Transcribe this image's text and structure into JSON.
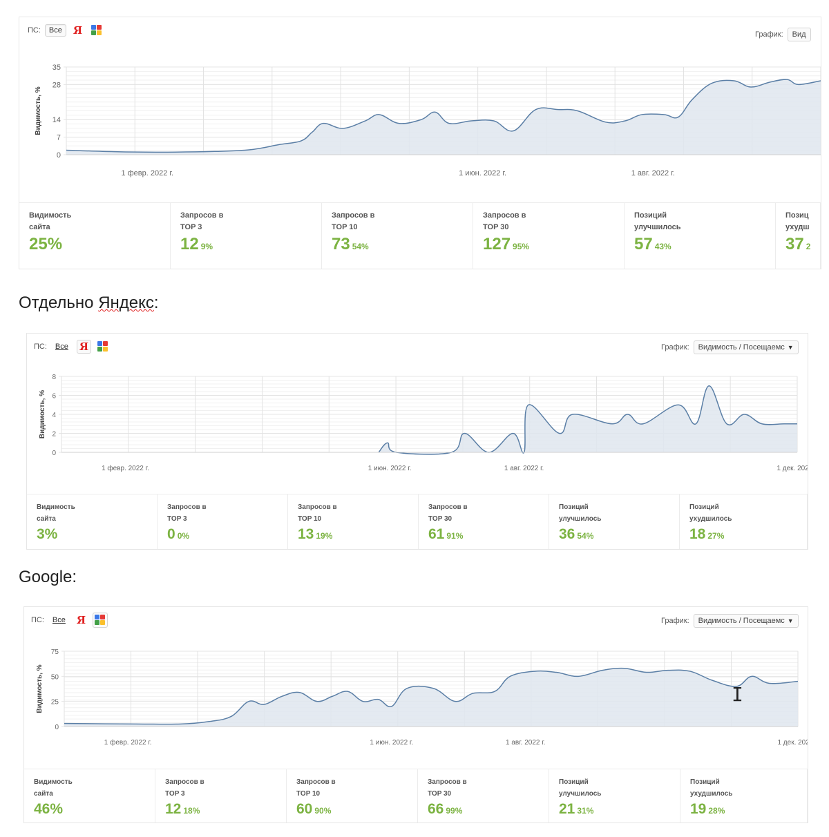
{
  "panels": [
    {
      "ps_label": "ПС:",
      "ps_all": "Все",
      "grafik_label": "График:",
      "grafik_value": "Вид",
      "ylabel": "Видимость, %",
      "stats": [
        {
          "label": "Видимость\nсайта",
          "value": "25%",
          "pct": ""
        },
        {
          "label": "Запросов в\nTOP 3",
          "value": "12",
          "pct": "9%"
        },
        {
          "label": "Запросов в\nTOP 10",
          "value": "73",
          "pct": "54%"
        },
        {
          "label": "Запросов в\nTOP 30",
          "value": "127",
          "pct": "95%"
        },
        {
          "label": "Позиций\nулучшилось",
          "value": "57",
          "pct": "43%"
        },
        {
          "label": "Позиц\nухудш",
          "value": "37",
          "pct": "2"
        }
      ]
    },
    {
      "ps_label": "ПС:",
      "ps_all": "Все",
      "grafik_label": "График:",
      "grafik_value": "Видимость / Посещаемс",
      "ylabel": "Видимость, %",
      "stats": [
        {
          "label": "Видимость\nсайта",
          "value": "3%",
          "pct": ""
        },
        {
          "label": "Запросов в\nTOP 3",
          "value": "0",
          "pct": "0%"
        },
        {
          "label": "Запросов в\nTOP 10",
          "value": "13",
          "pct": "19%"
        },
        {
          "label": "Запросов в\nTOP 30",
          "value": "61",
          "pct": "91%"
        },
        {
          "label": "Позиций\nулучшилось",
          "value": "36",
          "pct": "54%"
        },
        {
          "label": "Позиций\nухудшилось",
          "value": "18",
          "pct": "27%"
        }
      ]
    },
    {
      "ps_label": "ПС:",
      "ps_all": "Все",
      "grafik_label": "График:",
      "grafik_value": "Видимость / Посещаемс",
      "ylabel": "Видимость, %",
      "stats": [
        {
          "label": "Видимость\nсайта",
          "value": "46%",
          "pct": ""
        },
        {
          "label": "Запросов в\nTOP 3",
          "value": "12",
          "pct": "18%"
        },
        {
          "label": "Запросов в\nTOP 10",
          "value": "60",
          "pct": "90%"
        },
        {
          "label": "Запросов в\nTOP 30",
          "value": "66",
          "pct": "99%"
        },
        {
          "label": "Позиций\nулучшилось",
          "value": "21",
          "pct": "31%"
        },
        {
          "label": "Позиций\nухудшилось",
          "value": "19",
          "pct": "28%"
        }
      ]
    }
  ],
  "headings": {
    "yandex_prefix": "Отдельно ",
    "yandex_word": "Яндекс",
    "yandex_suffix": ":",
    "google": "Google:"
  },
  "colors": {
    "line": "#5b7fa6",
    "fill": "#dfe6ee",
    "grid": "#e4e4e4",
    "accent_green": "#7cb342",
    "yandex_red": "#e02020"
  },
  "chart_data": [
    {
      "type": "area",
      "ylabel": "Видимость, %",
      "yticks": [
        0,
        7,
        14,
        28,
        35
      ],
      "ylim": [
        0,
        35
      ],
      "x_axis": "date",
      "xlim": [
        "2022-01-03",
        "2022-09-30"
      ],
      "xticks": [
        {
          "date": "2022-02-01",
          "label": "1 февр. 2022 г."
        },
        {
          "date": "2022-06-01",
          "label": "1 июн. 2022 г."
        },
        {
          "date": "2022-08-01",
          "label": "1 авг. 2022 г."
        }
      ],
      "x": [
        "2022-01-03",
        "2022-01-20",
        "2022-02-05",
        "2022-02-25",
        "2022-03-10",
        "2022-03-20",
        "2022-03-28",
        "2022-04-01",
        "2022-04-05",
        "2022-04-12",
        "2022-04-20",
        "2022-04-25",
        "2022-05-02",
        "2022-05-10",
        "2022-05-15",
        "2022-05-20",
        "2022-05-28",
        "2022-06-05",
        "2022-06-12",
        "2022-06-20",
        "2022-06-28",
        "2022-07-05",
        "2022-07-15",
        "2022-07-22",
        "2022-07-28",
        "2022-08-05",
        "2022-08-10",
        "2022-08-15",
        "2022-08-22",
        "2022-08-30",
        "2022-09-05",
        "2022-09-12",
        "2022-09-18",
        "2022-09-22",
        "2022-09-30"
      ],
      "series": [
        {
          "values": [
            1.8,
            1.2,
            1.0,
            1.3,
            2.0,
            4.0,
            5.5,
            9.0,
            12.5,
            10.5,
            13.5,
            16.0,
            12.5,
            14.0,
            17.0,
            12.5,
            13.5,
            13.5,
            9.5,
            18.0,
            18.0,
            17.5,
            13.0,
            13.5,
            16.0,
            16.0,
            15.0,
            22.0,
            28.5,
            29.5,
            27.0,
            29.0,
            30.0,
            28.0,
            29.5
          ]
        }
      ]
    },
    {
      "type": "area",
      "ylabel": "Видимость, %",
      "yticks": [
        0,
        2,
        4,
        6,
        8
      ],
      "ylim": [
        0,
        8
      ],
      "x_axis": "date",
      "xlim": [
        "2022-01-03",
        "2022-12-03"
      ],
      "xticks": [
        {
          "date": "2022-02-01",
          "label": "1 февр. 2022 г."
        },
        {
          "date": "2022-06-01",
          "label": "1 июн. 2022 г."
        },
        {
          "date": "2022-08-01",
          "label": "1 авг. 2022 г."
        },
        {
          "date": "2022-12-01",
          "label": "1 дек. 202"
        }
      ],
      "x": [
        "2022-05-27",
        "2022-05-31",
        "2022-06-04",
        "2022-06-29",
        "2022-07-05",
        "2022-07-16",
        "2022-07-27",
        "2022-08-01",
        "2022-08-03",
        "2022-08-17",
        "2022-08-23",
        "2022-09-10",
        "2022-09-17",
        "2022-09-24",
        "2022-10-10",
        "2022-10-18",
        "2022-10-24",
        "2022-11-01",
        "2022-11-09",
        "2022-11-17",
        "2022-11-27",
        "2022-12-03"
      ],
      "series": [
        {
          "values": [
            0,
            1,
            0,
            0,
            2,
            0,
            2,
            0,
            5,
            2,
            4,
            3,
            4,
            3,
            5,
            3,
            7,
            3,
            4,
            3,
            3,
            3
          ]
        }
      ]
    },
    {
      "type": "area",
      "ylabel": "Видимость, %",
      "yticks": [
        0,
        25,
        50,
        75
      ],
      "ylim": [
        0,
        75
      ],
      "x_axis": "date",
      "xlim": [
        "2022-01-03",
        "2022-12-03"
      ],
      "xticks": [
        {
          "date": "2022-02-01",
          "label": "1 февр. 2022 г."
        },
        {
          "date": "2022-06-01",
          "label": "1 июн. 2022 г."
        },
        {
          "date": "2022-08-01",
          "label": "1 авг. 2022 г."
        },
        {
          "date": "2022-12-01",
          "label": "1 дек. 202"
        }
      ],
      "x": [
        "2022-01-03",
        "2022-02-05",
        "2022-02-25",
        "2022-03-10",
        "2022-03-20",
        "2022-03-28",
        "2022-04-04",
        "2022-04-12",
        "2022-04-20",
        "2022-04-28",
        "2022-05-05",
        "2022-05-12",
        "2022-05-19",
        "2022-05-26",
        "2022-06-01",
        "2022-06-08",
        "2022-06-20",
        "2022-06-30",
        "2022-07-08",
        "2022-07-18",
        "2022-07-25",
        "2022-08-05",
        "2022-08-15",
        "2022-08-25",
        "2022-09-05",
        "2022-09-15",
        "2022-09-25",
        "2022-10-05",
        "2022-10-15",
        "2022-10-25",
        "2022-11-05",
        "2022-11-12",
        "2022-11-20",
        "2022-12-03"
      ],
      "series": [
        {
          "values": [
            3,
            2.5,
            2.5,
            5,
            10,
            25,
            22,
            30,
            34,
            25,
            30,
            35,
            25,
            27,
            20,
            38,
            38,
            25,
            33,
            35,
            50,
            55,
            54,
            50,
            56,
            58,
            54,
            56,
            55,
            46,
            40,
            50,
            43,
            45
          ]
        }
      ]
    }
  ]
}
